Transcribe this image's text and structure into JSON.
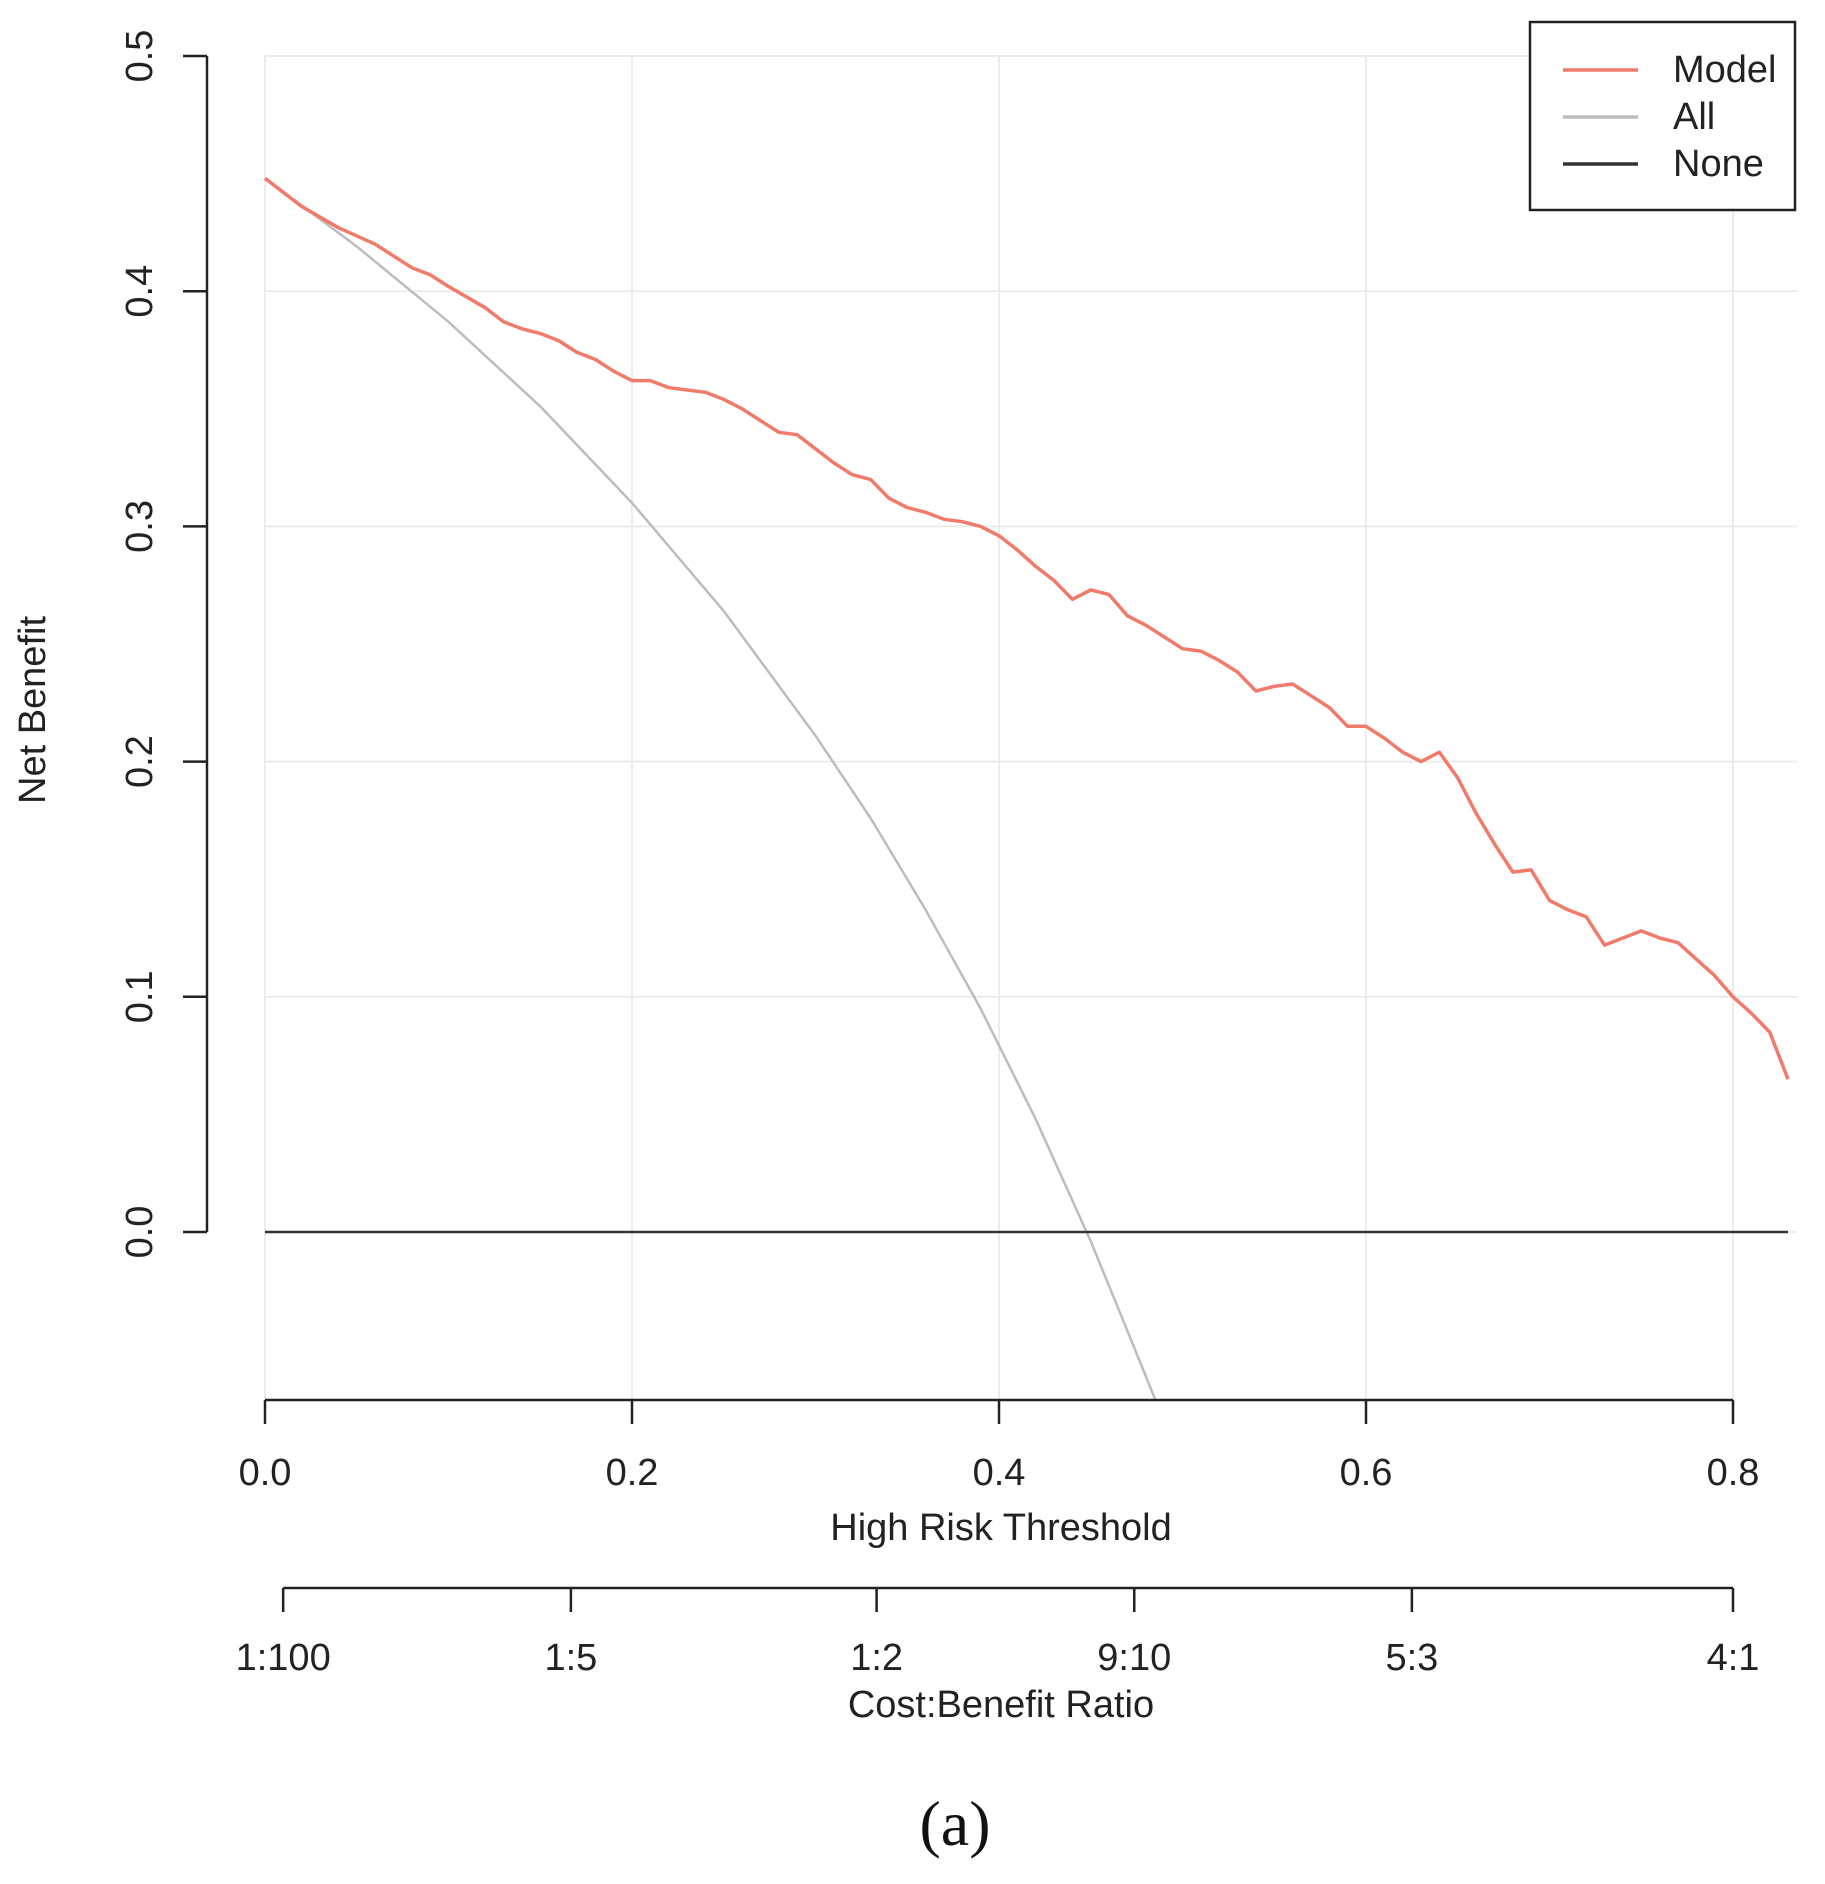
{
  "chart_data": {
    "type": "line",
    "xlabel": "High Risk Threshold",
    "ylabel": "Net Benefit",
    "xlim": [
      0,
      0.83
    ],
    "ylim": [
      -0.07,
      0.5
    ],
    "x_ticks": [
      "0.0",
      "0.2",
      "0.4",
      "0.6",
      "0.8"
    ],
    "y_ticks": [
      "0.0",
      "0.1",
      "0.2",
      "0.3",
      "0.4",
      "0.5"
    ],
    "secondary_axis": {
      "label": "Cost:Benefit Ratio",
      "ticks": [
        {
          "x": 0.0099,
          "label": "1:100"
        },
        {
          "x": 0.1667,
          "label": "1:5"
        },
        {
          "x": 0.3333,
          "label": "1:2"
        },
        {
          "x": 0.4737,
          "label": "9:10"
        },
        {
          "x": 0.625,
          "label": "5:3"
        },
        {
          "x": 0.8,
          "label": "4:1"
        }
      ]
    },
    "grid": true,
    "legend_position": "top-right",
    "series": [
      {
        "name": "Model",
        "color": "#f07b6b",
        "x": [
          0.0,
          0.02,
          0.04,
          0.06,
          0.08,
          0.09,
          0.1,
          0.12,
          0.13,
          0.14,
          0.15,
          0.16,
          0.17,
          0.18,
          0.19,
          0.2,
          0.21,
          0.22,
          0.24,
          0.25,
          0.26,
          0.27,
          0.28,
          0.29,
          0.3,
          0.31,
          0.32,
          0.33,
          0.34,
          0.35,
          0.36,
          0.37,
          0.38,
          0.39,
          0.4,
          0.41,
          0.42,
          0.43,
          0.44,
          0.45,
          0.46,
          0.47,
          0.48,
          0.49,
          0.5,
          0.51,
          0.52,
          0.53,
          0.54,
          0.55,
          0.56,
          0.57,
          0.58,
          0.59,
          0.6,
          0.61,
          0.62,
          0.63,
          0.64,
          0.65,
          0.66,
          0.67,
          0.68,
          0.69,
          0.7,
          0.71,
          0.72,
          0.73,
          0.74,
          0.75,
          0.76,
          0.77,
          0.78,
          0.79,
          0.8,
          0.81,
          0.82,
          0.83
        ],
        "y": [
          0.448,
          0.436,
          0.427,
          0.42,
          0.41,
          0.407,
          0.402,
          0.393,
          0.387,
          0.384,
          0.382,
          0.379,
          0.374,
          0.371,
          0.366,
          0.362,
          0.362,
          0.359,
          0.357,
          0.354,
          0.35,
          0.345,
          0.34,
          0.339,
          0.333,
          0.327,
          0.322,
          0.32,
          0.312,
          0.308,
          0.306,
          0.303,
          0.302,
          0.3,
          0.296,
          0.29,
          0.283,
          0.277,
          0.269,
          0.273,
          0.271,
          0.262,
          0.258,
          0.253,
          0.248,
          0.247,
          0.243,
          0.238,
          0.23,
          0.232,
          0.233,
          0.228,
          0.223,
          0.215,
          0.215,
          0.21,
          0.204,
          0.2,
          0.204,
          0.193,
          0.178,
          0.165,
          0.153,
          0.154,
          0.141,
          0.137,
          0.134,
          0.122,
          0.125,
          0.128,
          0.125,
          0.123,
          0.116,
          0.109,
          0.1,
          0.093,
          0.085,
          0.065
        ]
      },
      {
        "name": "All",
        "color": "#bdbdbd",
        "x": [
          0.0,
          0.05,
          0.1,
          0.15,
          0.2,
          0.25,
          0.3,
          0.33,
          0.36,
          0.39,
          0.42,
          0.45,
          0.47,
          0.485
        ],
        "y": [
          0.448,
          0.419,
          0.387,
          0.351,
          0.31,
          0.264,
          0.211,
          0.176,
          0.137,
          0.095,
          0.048,
          -0.004,
          -0.042,
          -0.071
        ]
      },
      {
        "name": "None",
        "color": "#333333",
        "x": [
          0.0,
          0.83
        ],
        "y": [
          0.0,
          0.0
        ]
      }
    ]
  },
  "caption": "(a)"
}
